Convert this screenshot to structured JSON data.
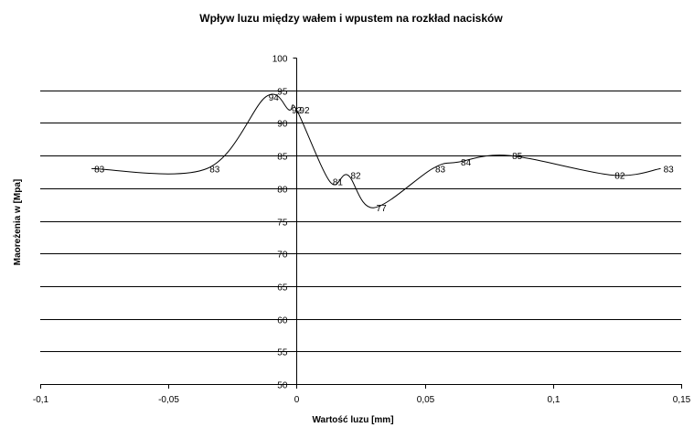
{
  "chart_data": {
    "type": "line",
    "title": "Wpływ luzu między wałem i wpustem na rozkład nacisków",
    "xlabel": "Wartość luzu [mm]",
    "ylabel": "Maoreżenia w [Mpa]",
    "xlim": [
      -0.1,
      0.15
    ],
    "ylim": [
      50,
      100
    ],
    "x_ticks": [
      -0.1,
      -0.05,
      0,
      0.05,
      0.1,
      0.15
    ],
    "x_tick_labels": [
      "-0,1",
      "-0,05",
      "0",
      "0,05",
      "0,1",
      "0,15"
    ],
    "y_ticks": [
      50,
      55,
      60,
      65,
      70,
      75,
      80,
      85,
      90,
      95,
      100
    ],
    "y_tick_labels": [
      "50",
      "55",
      "60",
      "65",
      "70",
      "75",
      "80",
      "85",
      "90",
      "95",
      "100"
    ],
    "grid": true,
    "legend": "none",
    "smooth": true,
    "series": [
      {
        "x": [
          -0.08,
          -0.035,
          -0.012,
          -0.003,
          0,
          0.013,
          0.02,
          0.03,
          0.053,
          0.063,
          0.083,
          0.123,
          0.142
        ],
        "y": [
          83,
          83,
          94,
          92,
          92,
          81,
          82,
          77,
          83,
          84,
          85,
          82,
          83
        ],
        "labels": [
          "83",
          "83",
          "94",
          "92",
          "92",
          "81",
          "82",
          "77",
          "83",
          "84",
          "85",
          "82",
          "83"
        ]
      }
    ]
  }
}
